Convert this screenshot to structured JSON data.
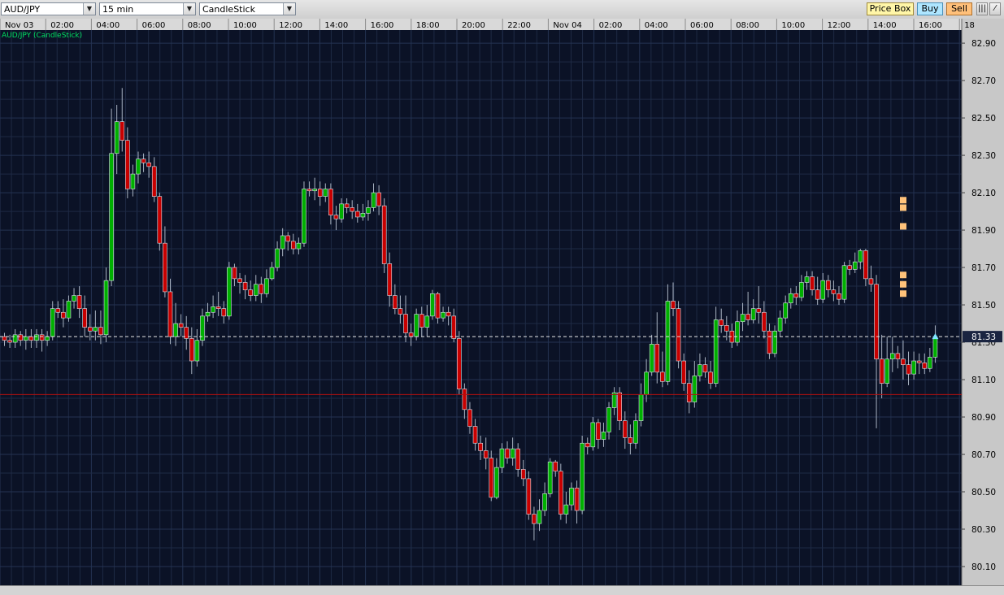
{
  "toolbar": {
    "symbol": "AUD/JPY",
    "timeframe": "15 min",
    "chart_style": "CandleStick",
    "price_box_label": "Price Box",
    "buy_label": "Buy",
    "sell_label": "Sell",
    "colors": {
      "price_box": "#fff6a8",
      "buy": "#aee6ff",
      "sell": "#ffc07a"
    }
  },
  "chart_data": {
    "type": "candlestick",
    "title": "AUD/JPY (CandleStick)",
    "interval": "15 min",
    "current_price": "81.33",
    "y_ticks": [
      "82.90",
      "82.70",
      "82.50",
      "82.30",
      "82.10",
      "81.90",
      "81.70",
      "81.50",
      "81.30",
      "81.10",
      "80.90",
      "80.70",
      "80.50",
      "80.30",
      "80.10"
    ],
    "ylim": [
      80.0,
      82.97
    ],
    "x_ticks": [
      "Nov 03",
      "02:00",
      "04:00",
      "06:00",
      "08:00",
      "10:00",
      "12:00",
      "14:00",
      "16:00",
      "18:00",
      "20:00",
      "22:00",
      "Nov 04",
      "02:00",
      "04:00",
      "06:00",
      "08:00",
      "10:00",
      "12:00",
      "14:00",
      "16:00",
      "18"
    ],
    "reference_line": 81.02,
    "marker_levels": [
      82.06,
      82.02,
      81.92,
      81.66,
      81.61,
      81.56
    ],
    "colors": {
      "up": "#00b000",
      "down": "#c80000",
      "background": "#0b1226",
      "grid": "#1e2a44",
      "label": "#00e060",
      "ref_line": "#b01010",
      "marker": "#ffc27a"
    },
    "candles": [
      [
        81.33,
        81.31,
        81.28,
        81.35
      ],
      [
        81.31,
        81.3,
        81.27,
        81.34
      ],
      [
        81.3,
        81.34,
        81.27,
        81.37
      ],
      [
        81.34,
        81.31,
        81.28,
        81.36
      ],
      [
        81.31,
        81.33,
        81.26,
        81.37
      ],
      [
        81.33,
        81.31,
        81.27,
        81.37
      ],
      [
        81.31,
        81.34,
        81.27,
        81.37
      ],
      [
        81.34,
        81.31,
        81.25,
        81.37
      ],
      [
        81.31,
        81.33,
        81.28,
        81.36
      ],
      [
        81.33,
        81.48,
        81.31,
        81.52
      ],
      [
        81.48,
        81.46,
        81.43,
        81.52
      ],
      [
        81.46,
        81.43,
        81.38,
        81.53
      ],
      [
        81.43,
        81.52,
        81.41,
        81.55
      ],
      [
        81.52,
        81.55,
        81.48,
        81.59
      ],
      [
        81.55,
        81.48,
        81.43,
        81.6
      ],
      [
        81.48,
        81.38,
        81.33,
        81.55
      ],
      [
        81.38,
        81.36,
        81.31,
        81.45
      ],
      [
        81.36,
        81.38,
        81.31,
        81.47
      ],
      [
        81.38,
        81.34,
        81.29,
        81.47
      ],
      [
        81.34,
        81.63,
        81.3,
        81.7
      ],
      [
        81.63,
        82.31,
        81.6,
        82.55
      ],
      [
        82.31,
        82.48,
        82.2,
        82.57
      ],
      [
        82.48,
        82.38,
        82.32,
        82.66
      ],
      [
        82.38,
        82.12,
        82.07,
        82.45
      ],
      [
        82.12,
        82.2,
        82.08,
        82.25
      ],
      [
        82.2,
        82.28,
        82.15,
        82.32
      ],
      [
        82.28,
        82.26,
        82.21,
        82.31
      ],
      [
        82.26,
        82.24,
        82.18,
        82.32
      ],
      [
        82.24,
        82.08,
        82.05,
        82.29
      ],
      [
        82.08,
        81.83,
        81.79,
        82.1
      ],
      [
        81.83,
        81.57,
        81.54,
        81.92
      ],
      [
        81.57,
        81.33,
        81.29,
        81.64
      ],
      [
        81.33,
        81.4,
        81.28,
        81.51
      ],
      [
        81.4,
        81.38,
        81.33,
        81.45
      ],
      [
        81.38,
        81.32,
        81.26,
        81.44
      ],
      [
        81.32,
        81.2,
        81.13,
        81.38
      ],
      [
        81.2,
        81.31,
        81.17,
        81.37
      ],
      [
        81.31,
        81.44,
        81.28,
        81.48
      ],
      [
        81.44,
        81.46,
        81.41,
        81.51
      ],
      [
        81.46,
        81.49,
        81.43,
        81.55
      ],
      [
        81.49,
        81.48,
        81.44,
        81.57
      ],
      [
        81.48,
        81.44,
        81.4,
        81.52
      ],
      [
        81.44,
        81.7,
        81.42,
        81.73
      ],
      [
        81.7,
        81.64,
        81.6,
        81.72
      ],
      [
        81.64,
        81.62,
        81.56,
        81.67
      ],
      [
        81.62,
        81.58,
        81.53,
        81.66
      ],
      [
        81.58,
        81.55,
        81.52,
        81.63
      ],
      [
        81.55,
        81.61,
        81.52,
        81.66
      ],
      [
        81.61,
        81.56,
        81.51,
        81.65
      ],
      [
        81.56,
        81.64,
        81.54,
        81.69
      ],
      [
        81.64,
        81.7,
        81.63,
        81.73
      ],
      [
        81.7,
        81.8,
        81.68,
        81.84
      ],
      [
        81.8,
        81.87,
        81.76,
        81.91
      ],
      [
        81.87,
        81.84,
        81.79,
        81.89
      ],
      [
        81.84,
        81.8,
        81.77,
        81.88
      ],
      [
        81.8,
        81.83,
        81.77,
        81.86
      ],
      [
        81.83,
        82.12,
        81.81,
        82.16
      ],
      [
        82.12,
        82.11,
        82.08,
        82.16
      ],
      [
        82.11,
        82.12,
        82.06,
        82.18
      ],
      [
        82.12,
        82.08,
        82.03,
        82.16
      ],
      [
        82.08,
        82.12,
        82.05,
        82.15
      ],
      [
        82.12,
        81.98,
        81.93,
        82.15
      ],
      [
        81.98,
        81.96,
        81.9,
        82.03
      ],
      [
        81.96,
        82.04,
        81.94,
        82.07
      ],
      [
        82.04,
        82.02,
        81.99,
        82.07
      ],
      [
        82.02,
        82.0,
        81.96,
        82.06
      ],
      [
        82.0,
        81.97,
        81.94,
        82.04
      ],
      [
        81.97,
        81.99,
        81.95,
        82.04
      ],
      [
        81.99,
        82.02,
        81.95,
        82.06
      ],
      [
        82.02,
        82.1,
        82.0,
        82.15
      ],
      [
        82.1,
        82.03,
        81.98,
        82.14
      ],
      [
        82.03,
        81.72,
        81.67,
        82.07
      ],
      [
        81.72,
        81.55,
        81.49,
        81.78
      ],
      [
        81.55,
        81.48,
        81.45,
        81.61
      ],
      [
        81.48,
        81.45,
        81.4,
        81.55
      ],
      [
        81.45,
        81.35,
        81.3,
        81.55
      ],
      [
        81.35,
        81.33,
        81.28,
        81.4
      ],
      [
        81.33,
        81.45,
        81.31,
        81.48
      ],
      [
        81.45,
        81.38,
        81.33,
        81.49
      ],
      [
        81.38,
        81.44,
        81.33,
        81.5
      ],
      [
        81.44,
        81.56,
        81.42,
        81.58
      ],
      [
        81.56,
        81.43,
        81.4,
        81.57
      ],
      [
        81.43,
        81.46,
        81.41,
        81.49
      ],
      [
        81.46,
        81.44,
        81.39,
        81.49
      ],
      [
        81.44,
        81.32,
        81.3,
        81.48
      ],
      [
        81.32,
        81.05,
        81.02,
        81.36
      ],
      [
        81.05,
        80.94,
        80.89,
        81.08
      ],
      [
        80.94,
        80.85,
        80.81,
        80.98
      ],
      [
        80.85,
        80.76,
        80.72,
        80.89
      ],
      [
        80.76,
        80.72,
        80.67,
        80.8
      ],
      [
        80.72,
        80.68,
        80.62,
        80.79
      ],
      [
        80.68,
        80.47,
        80.45,
        80.72
      ],
      [
        80.47,
        80.63,
        80.46,
        80.68
      ],
      [
        80.63,
        80.73,
        80.6,
        80.76
      ],
      [
        80.73,
        80.68,
        80.65,
        80.77
      ],
      [
        80.68,
        80.73,
        80.64,
        80.79
      ],
      [
        80.73,
        80.62,
        80.58,
        80.76
      ],
      [
        80.62,
        80.57,
        80.53,
        80.67
      ],
      [
        80.57,
        80.38,
        80.35,
        80.61
      ],
      [
        80.38,
        80.33,
        80.24,
        80.42
      ],
      [
        80.33,
        80.4,
        80.29,
        80.46
      ],
      [
        80.4,
        80.49,
        80.37,
        80.55
      ],
      [
        80.49,
        80.66,
        80.47,
        80.68
      ],
      [
        80.66,
        80.61,
        80.58,
        80.67
      ],
      [
        80.61,
        80.38,
        80.35,
        80.65
      ],
      [
        80.38,
        80.43,
        80.33,
        80.5
      ],
      [
        80.43,
        80.52,
        80.4,
        80.55
      ],
      [
        80.52,
        80.4,
        80.33,
        80.56
      ],
      [
        80.4,
        80.76,
        80.38,
        80.8
      ],
      [
        80.76,
        80.74,
        80.7,
        80.79
      ],
      [
        80.74,
        80.87,
        80.72,
        80.9
      ],
      [
        80.87,
        80.78,
        80.73,
        80.89
      ],
      [
        80.78,
        80.82,
        80.74,
        80.87
      ],
      [
        80.82,
        80.95,
        80.78,
        80.98
      ],
      [
        80.95,
        81.03,
        80.91,
        81.06
      ],
      [
        81.03,
        80.88,
        80.83,
        81.06
      ],
      [
        80.88,
        80.79,
        80.73,
        80.93
      ],
      [
        80.79,
        80.76,
        80.7,
        80.86
      ],
      [
        80.76,
        80.88,
        80.73,
        80.92
      ],
      [
        80.88,
        81.02,
        80.85,
        81.08
      ],
      [
        81.02,
        81.14,
        80.98,
        81.21
      ],
      [
        81.14,
        81.29,
        81.12,
        81.34
      ],
      [
        81.29,
        81.14,
        81.08,
        81.46
      ],
      [
        81.14,
        81.09,
        81.06,
        81.25
      ],
      [
        81.09,
        81.52,
        81.07,
        81.61
      ],
      [
        81.52,
        81.48,
        81.44,
        81.62
      ],
      [
        81.48,
        81.2,
        81.16,
        81.52
      ],
      [
        81.2,
        81.08,
        81.04,
        81.24
      ],
      [
        81.08,
        80.98,
        80.92,
        81.15
      ],
      [
        80.98,
        81.12,
        80.95,
        81.2
      ],
      [
        81.12,
        81.18,
        81.09,
        81.24
      ],
      [
        81.18,
        81.14,
        81.11,
        81.22
      ],
      [
        81.14,
        81.08,
        81.05,
        81.2
      ],
      [
        81.08,
        81.42,
        81.06,
        81.49
      ],
      [
        81.42,
        81.39,
        81.35,
        81.48
      ],
      [
        81.39,
        81.36,
        81.31,
        81.44
      ],
      [
        81.36,
        81.3,
        81.27,
        81.4
      ],
      [
        81.3,
        81.41,
        81.28,
        81.47
      ],
      [
        81.41,
        81.45,
        81.36,
        81.51
      ],
      [
        81.45,
        81.42,
        81.39,
        81.57
      ],
      [
        81.42,
        81.48,
        81.4,
        81.53
      ],
      [
        81.48,
        81.46,
        81.4,
        81.6
      ],
      [
        81.46,
        81.36,
        81.32,
        81.52
      ],
      [
        81.36,
        81.24,
        81.21,
        81.4
      ],
      [
        81.24,
        81.36,
        81.22,
        81.39
      ],
      [
        81.36,
        81.43,
        81.33,
        81.47
      ],
      [
        81.43,
        81.51,
        81.4,
        81.55
      ],
      [
        81.51,
        81.56,
        81.48,
        81.59
      ],
      [
        81.56,
        81.54,
        81.5,
        81.6
      ],
      [
        81.54,
        81.62,
        81.52,
        81.66
      ],
      [
        81.62,
        81.65,
        81.58,
        81.68
      ],
      [
        81.65,
        81.58,
        81.55,
        81.68
      ],
      [
        81.58,
        81.53,
        81.5,
        81.65
      ],
      [
        81.53,
        81.63,
        81.51,
        81.67
      ],
      [
        81.63,
        81.58,
        81.54,
        81.66
      ],
      [
        81.58,
        81.56,
        81.52,
        81.63
      ],
      [
        81.56,
        81.53,
        81.5,
        81.6
      ],
      [
        81.53,
        81.71,
        81.51,
        81.73
      ],
      [
        81.71,
        81.69,
        81.66,
        81.74
      ],
      [
        81.69,
        81.73,
        81.67,
        81.78
      ],
      [
        81.73,
        81.79,
        81.69,
        81.8
      ],
      [
        81.79,
        81.64,
        81.6,
        81.8
      ],
      [
        81.64,
        81.61,
        81.57,
        81.71
      ],
      [
        81.61,
        81.21,
        80.84,
        81.66
      ],
      [
        81.21,
        81.08,
        81.0,
        81.34
      ],
      [
        81.08,
        81.21,
        81.06,
        81.33
      ],
      [
        81.21,
        81.24,
        81.14,
        81.33
      ],
      [
        81.24,
        81.21,
        81.16,
        81.28
      ],
      [
        81.21,
        81.18,
        81.1,
        81.31
      ],
      [
        81.18,
        81.13,
        81.07,
        81.25
      ],
      [
        81.13,
        81.2,
        81.1,
        81.25
      ],
      [
        81.2,
        81.19,
        81.13,
        81.24
      ],
      [
        81.19,
        81.16,
        81.13,
        81.24
      ],
      [
        81.16,
        81.22,
        81.14,
        81.27
      ],
      [
        81.22,
        81.33,
        81.19,
        81.39
      ]
    ]
  }
}
